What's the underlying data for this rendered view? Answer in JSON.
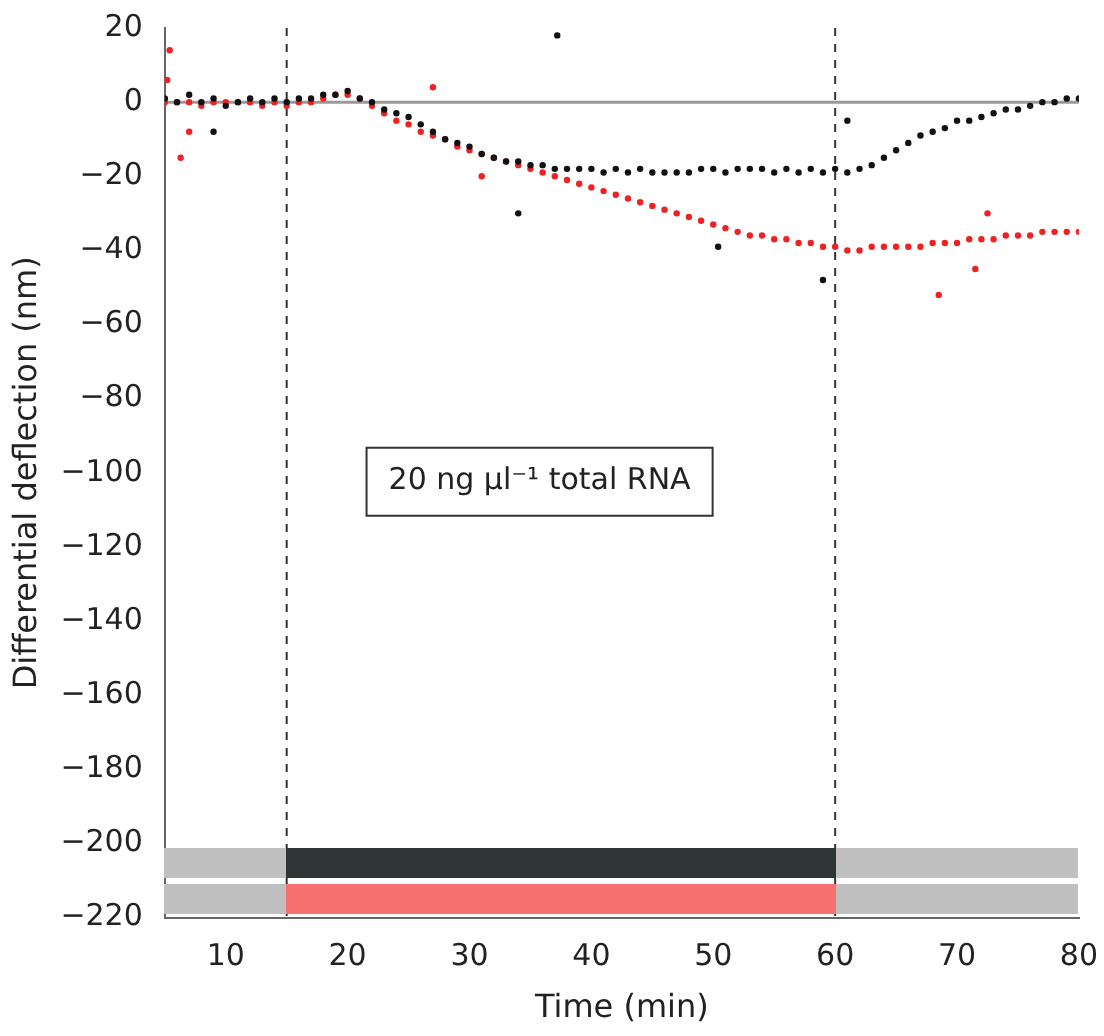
{
  "chart_data": {
    "type": "scatter",
    "xlabel": "Time (min)",
    "ylabel": "Differential deflection (nm)",
    "xlim": [
      5,
      80
    ],
    "xticks": [
      {
        "value": 5,
        "label": null
      },
      10,
      20,
      30,
      40,
      50,
      60,
      70,
      80
    ],
    "ylim": [
      -220,
      20
    ],
    "yticks": [
      -220,
      -200,
      -180,
      -160,
      -140,
      -120,
      -100,
      -80,
      -60,
      -40,
      -20,
      0,
      20
    ],
    "annotations": [
      "20 ng µl⁻¹ total RNA"
    ],
    "marker": "circle",
    "legend": false,
    "grid": false,
    "ref_lines": [
      {
        "axis": "x",
        "value": 15,
        "label": null,
        "color": "#333333",
        "line_style": "dashed"
      },
      {
        "axis": "x",
        "value": 60,
        "label": null,
        "color": "#333333",
        "line_style": "dashed"
      },
      {
        "axis": "y",
        "value": 0,
        "label": null,
        "color": "#999999",
        "line_style": "solid"
      }
    ],
    "series": [
      {
        "color": "#111111",
        "x": [
          5,
          6,
          7,
          8,
          9,
          10,
          11,
          12,
          13,
          14,
          15,
          16,
          17,
          18,
          19,
          20,
          21,
          22,
          23,
          24,
          25,
          26,
          27,
          28,
          29,
          30,
          31,
          32,
          33,
          34,
          35,
          36,
          37,
          38,
          39,
          40,
          41,
          42,
          43,
          44,
          45,
          46,
          47,
          48,
          49,
          50,
          51,
          52,
          53,
          54,
          55,
          56,
          57,
          58,
          59,
          60,
          61,
          62,
          63,
          64,
          65,
          66,
          67,
          68,
          69,
          70,
          71,
          72,
          73,
          74,
          75,
          76,
          77,
          78,
          79,
          80,
          37.2,
          9,
          59,
          50.4,
          34,
          61
        ],
        "values": [
          1,
          0,
          2,
          0,
          1,
          -1,
          0,
          1,
          0,
          1,
          0,
          1,
          1,
          2,
          2,
          3,
          1,
          0,
          -2,
          -3,
          -4,
          -6,
          -8,
          -10,
          -11,
          -12,
          -14,
          -15,
          -16,
          -16,
          -17,
          -17,
          -18,
          -18,
          -18,
          -18,
          -19,
          -18,
          -19,
          -18,
          -19,
          -19,
          -19,
          -19,
          -18,
          -18,
          -19,
          -18,
          -18,
          -18,
          -19,
          -18,
          -19,
          -18,
          -19,
          -18,
          -19,
          -18,
          -17,
          -15,
          -13,
          -11,
          -9,
          -8,
          -7,
          -5,
          -5,
          -4,
          -3,
          -2,
          -2,
          -1,
          0,
          0,
          1,
          1,
          18,
          -8,
          -48,
          -39,
          -30,
          -5
        ]
      },
      {
        "color": "#ee2222",
        "x": [
          5,
          6,
          7,
          8,
          9,
          10,
          11,
          12,
          13,
          14,
          15,
          16,
          17,
          18,
          19,
          20,
          21,
          22,
          23,
          24,
          25,
          26,
          27,
          28,
          29,
          30,
          31,
          32,
          33,
          34,
          35,
          36,
          37,
          38,
          39,
          40,
          41,
          42,
          43,
          44,
          45,
          46,
          47,
          48,
          49,
          50,
          51,
          52,
          53,
          54,
          55,
          56,
          57,
          58,
          59,
          60,
          61,
          62,
          63,
          64,
          65,
          66,
          67,
          68,
          69,
          70,
          71,
          72,
          73,
          74,
          75,
          76,
          77,
          78,
          79,
          80,
          5.4,
          5.2,
          6.3,
          7,
          72.5,
          71.5,
          68.5,
          27,
          31
        ],
        "values": [
          0,
          0,
          0,
          -1,
          0,
          0,
          0,
          0,
          -1,
          0,
          -1,
          0,
          0,
          1,
          2,
          2,
          1,
          -1,
          -3,
          -5,
          -6,
          -8,
          -9,
          -10,
          -12,
          -13,
          -14,
          -15,
          -16,
          -17,
          -18,
          -19,
          -20,
          -21,
          -22,
          -23,
          -24,
          -25,
          -26,
          -27,
          -28,
          -29,
          -30,
          -31,
          -32,
          -33,
          -34,
          -35,
          -36,
          -36,
          -37,
          -37,
          -38,
          -38,
          -39,
          -39,
          -40,
          -40,
          -39,
          -39,
          -39,
          -39,
          -39,
          -38,
          -38,
          -38,
          -37,
          -37,
          -37,
          -36,
          -36,
          -36,
          -35,
          -35,
          -35,
          -35,
          14,
          6,
          -15,
          -8,
          -30,
          -45,
          -52,
          4,
          -20
        ]
      }
    ]
  }
}
